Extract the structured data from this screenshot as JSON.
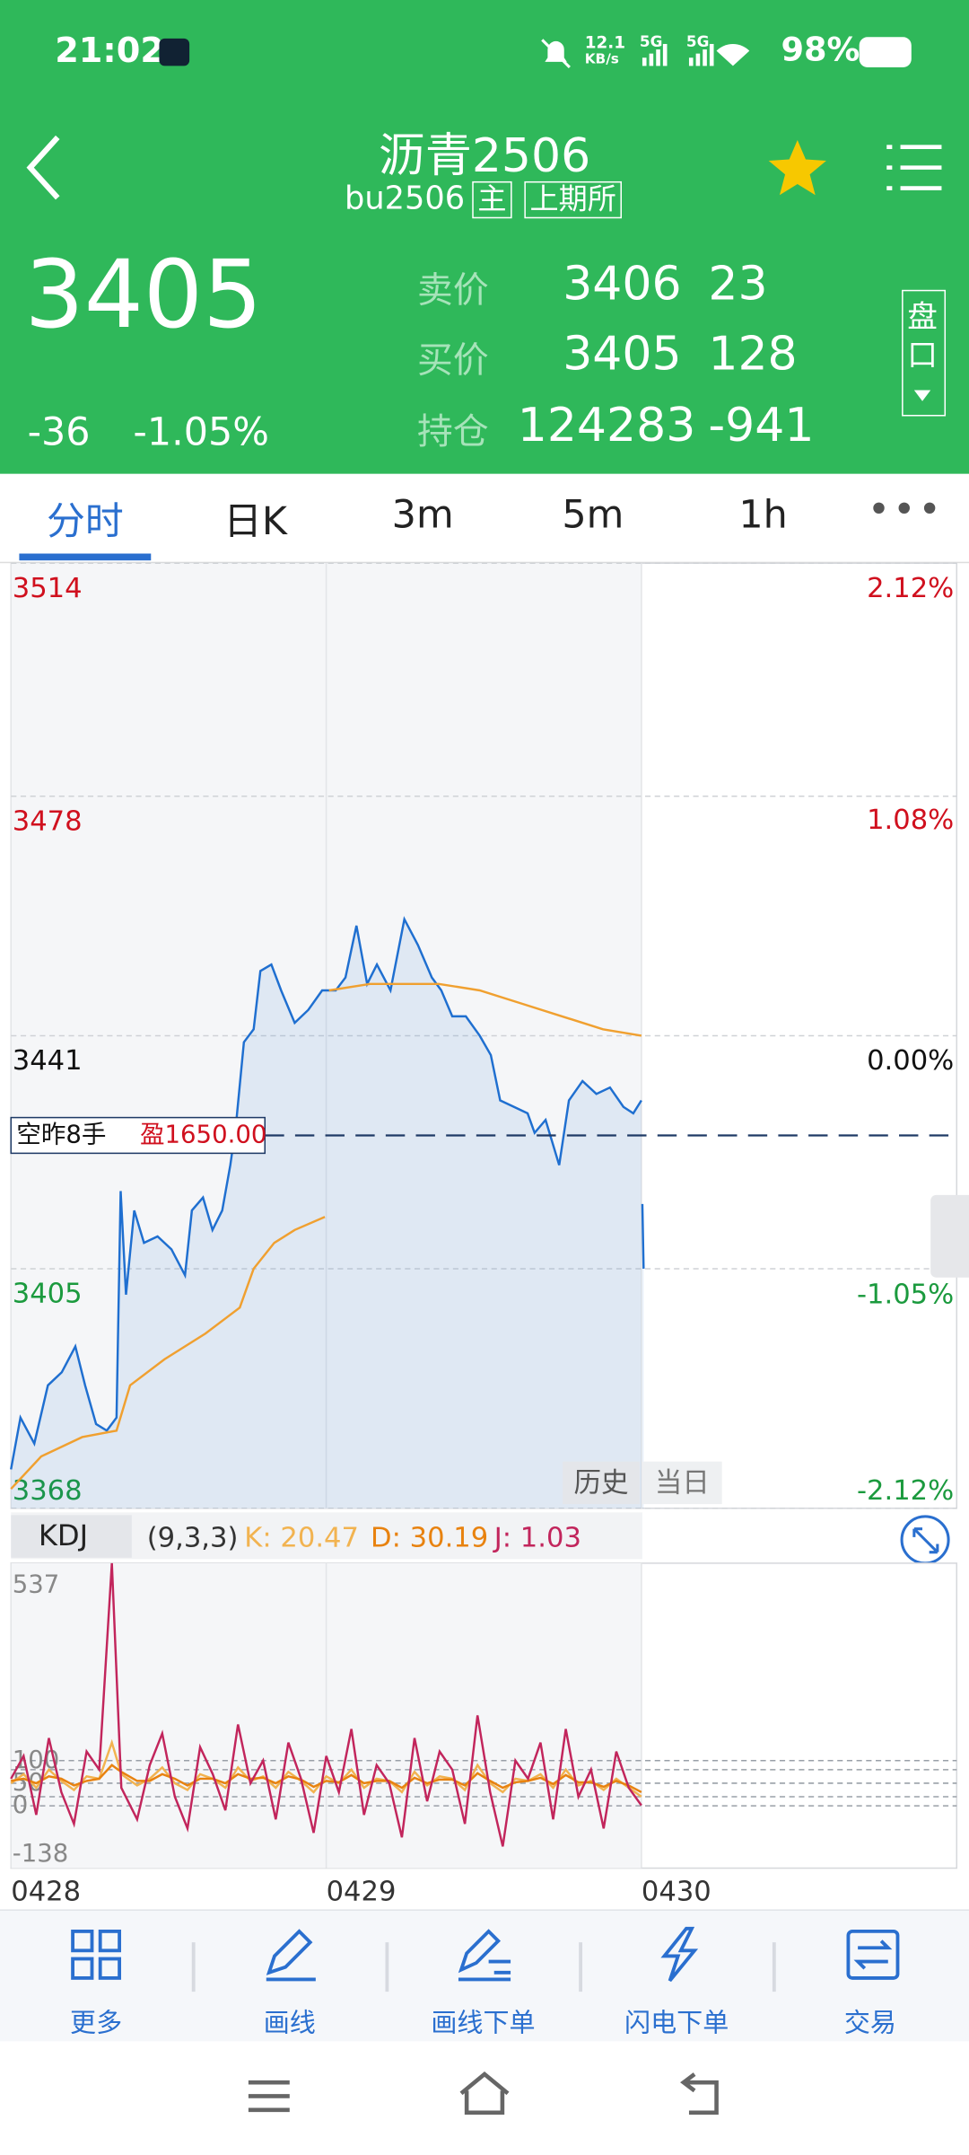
{
  "status_bar": {
    "time": "21:02",
    "net_speed": "12.1",
    "net_unit": "KB/s",
    "sim1": "5G",
    "sim2": "5G",
    "battery": "98%"
  },
  "header": {
    "title": "沥青2506",
    "code": "bu2506",
    "tag_main": "主",
    "exchange": "上期所"
  },
  "quote": {
    "price": "3405",
    "change": "-36",
    "change_pct": "-1.05%",
    "sell_label": "卖价",
    "sell_price": "3406",
    "sell_vol": "23",
    "buy_label": "买价",
    "buy_price": "3405",
    "buy_vol": "128",
    "oi_label": "持仓",
    "oi": "124283",
    "oi_change": "-941",
    "panel_button": "盘口"
  },
  "tabs": [
    "分时",
    "日K",
    "3m",
    "5m",
    "1h"
  ],
  "chart_data": [
    {
      "type": "line",
      "xlim": [
        0,
        3
      ],
      "xticks": [
        {
          "value": 0,
          "label": "0428"
        },
        {
          "value": 1,
          "label": "0429"
        },
        {
          "value": 2,
          "label": "0430"
        }
      ],
      "ylim": [
        3368,
        3514
      ],
      "yticks": [
        3514,
        3478,
        3441,
        3405,
        3368
      ],
      "reference_price": 3441,
      "y2lim": [
        -2.12,
        2.12
      ],
      "y2ticks": [
        {
          "value": 2.12,
          "label": "2.12%"
        },
        {
          "value": 1.08,
          "label": "1.08%"
        },
        {
          "value": 0,
          "label": "0.00%"
        },
        {
          "value": -1.05,
          "label": "-1.05%"
        },
        {
          "value": -2.12,
          "label": "-2.12%"
        }
      ],
      "series": [
        {
          "color": "#1f6fd0",
          "area": true,
          "x": [
            0,
            0.03,
            0.074,
            0.117,
            0.161,
            0.204,
            0.235,
            0.27,
            0.304,
            0.335,
            0.348,
            0.365,
            0.391,
            0.422,
            0.465,
            0.509,
            0.552,
            0.574,
            0.609,
            0.639,
            0.67,
            0.696,
            0.713,
            0.739,
            0.77,
            0.791,
            0.826,
            0.857,
            0.9,
            0.943,
            0.987,
            1.03,
            1.061,
            1.096,
            1.13,
            1.161,
            1.204,
            1.248,
            1.291,
            1.335,
            1.365,
            1.4,
            1.443,
            1.487,
            1.522,
            1.552,
            1.596,
            1.639,
            1.661,
            1.696,
            1.739,
            1.77,
            1.813,
            1.857,
            1.9,
            1.943,
            1.974,
            2.0,
            2.001,
            2.003,
            2.007
          ],
          "values": [
            3374,
            3382,
            3378,
            3387,
            3389,
            3393,
            3387,
            3381,
            3380,
            3382,
            3417,
            3401,
            3414,
            3409,
            3410,
            3408,
            3404,
            3414,
            3416,
            3411,
            3414,
            3421,
            3427,
            3440,
            3442,
            3451,
            3452,
            3448,
            3443,
            3445,
            3448,
            3448,
            3450,
            3458,
            3449,
            3452,
            3448,
            3459,
            3455,
            3450,
            3448,
            3444,
            3444,
            3441,
            3438,
            3431,
            3430,
            3429,
            3426,
            3428,
            3421,
            3431,
            3434,
            3432,
            3433,
            3430,
            3429,
            3431,
            null,
            3415,
            3405
          ]
        },
        {
          "color": "#f0a030",
          "area": false,
          "x": [
            0,
            0.096,
            0.226,
            0.335,
            0.378,
            0.487,
            0.617,
            0.726,
            0.77,
            0.835,
            0.9,
            0.996,
            1.0,
            1.009,
            1.139,
            1.27,
            1.357,
            1.487,
            1.617,
            1.748,
            1.878,
            2.0
          ],
          "values": [
            3371,
            3376,
            3379,
            3380,
            3387,
            3391,
            3395,
            3399,
            3405,
            3409,
            3411,
            3413,
            null,
            3448,
            3449,
            3449,
            3449,
            3448,
            3446,
            3444,
            3442,
            3441
          ]
        }
      ],
      "position": {
        "label": "空昨8手",
        "pnl": "盈1650.00",
        "price": 3425.6,
        "color": "#1f3a66"
      }
    },
    {
      "type": "line",
      "title": "KDJ",
      "params": "(9,3,3)",
      "xlim": [
        0,
        3
      ],
      "ylim": [
        -138,
        537
      ],
      "yticks": [
        537,
        100,
        50,
        0,
        -138
      ],
      "levels": [
        100,
        80,
        50,
        20,
        0
      ],
      "x": [
        0,
        0.04,
        0.08,
        0.12,
        0.16,
        0.2,
        0.24,
        0.28,
        0.32,
        0.35,
        0.4,
        0.44,
        0.48,
        0.52,
        0.56,
        0.6,
        0.64,
        0.68,
        0.72,
        0.76,
        0.8,
        0.84,
        0.88,
        0.92,
        0.96,
        1.0,
        1.04,
        1.08,
        1.12,
        1.16,
        1.2,
        1.24,
        1.28,
        1.32,
        1.36,
        1.4,
        1.44,
        1.48,
        1.52,
        1.56,
        1.6,
        1.64,
        1.68,
        1.72,
        1.76,
        1.8,
        1.84,
        1.88,
        1.92,
        1.96,
        2.0
      ],
      "series": [
        {
          "name": "K: 20.47",
          "color": "#f2b350",
          "values": [
            50,
            70,
            40,
            80,
            55,
            35,
            65,
            60,
            140,
            70,
            45,
            60,
            85,
            50,
            35,
            70,
            60,
            40,
            85,
            55,
            65,
            40,
            75,
            55,
            30,
            65,
            50,
            80,
            40,
            60,
            55,
            30,
            75,
            45,
            65,
            60,
            35,
            90,
            50,
            30,
            60,
            55,
            70,
            40,
            80,
            45,
            55,
            35,
            60,
            40,
            20.47
          ]
        },
        {
          "name": "D: 30.19",
          "color": "#e8820f",
          "values": [
            55,
            60,
            50,
            65,
            60,
            45,
            55,
            60,
            90,
            75,
            55,
            55,
            70,
            60,
            45,
            60,
            60,
            50,
            70,
            60,
            62,
            50,
            65,
            58,
            42,
            55,
            52,
            68,
            50,
            55,
            55,
            40,
            62,
            50,
            58,
            58,
            45,
            72,
            55,
            40,
            52,
            55,
            62,
            48,
            68,
            52,
            52,
            42,
            55,
            45,
            30.19
          ]
        },
        {
          "name": "J: 1.03",
          "color": "#c2255c",
          "values": [
            60,
            110,
            -20,
            150,
            30,
            -40,
            120,
            80,
            537,
            40,
            -30,
            90,
            160,
            20,
            -50,
            130,
            70,
            -10,
            180,
            50,
            100,
            -30,
            140,
            60,
            -60,
            110,
            30,
            170,
            -20,
            90,
            50,
            -70,
            150,
            10,
            120,
            80,
            -40,
            200,
            30,
            -90,
            100,
            60,
            140,
            -30,
            170,
            20,
            80,
            -50,
            120,
            40,
            1.03
          ]
        }
      ]
    }
  ],
  "overlay": {
    "history": "历史",
    "today": "当日"
  },
  "toolbar": [
    "更多",
    "画线",
    "画线下单",
    "闪电下单",
    "交易"
  ]
}
